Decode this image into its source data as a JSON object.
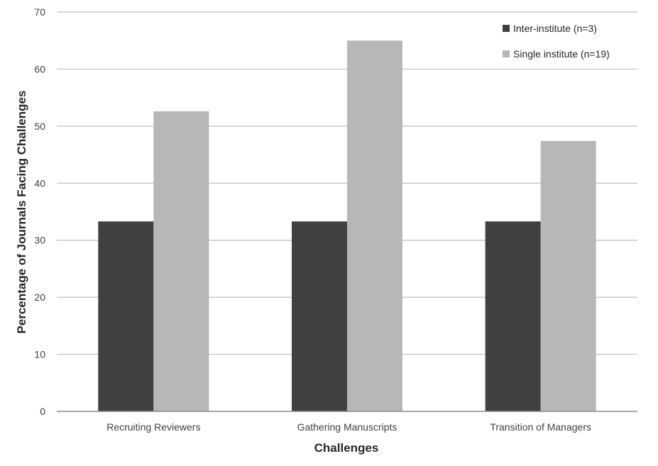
{
  "chart_data": {
    "type": "bar",
    "title": "",
    "xlabel": "Challenges",
    "ylabel": "Percentage of Journals Facing Challenges",
    "categories": [
      "Recruiting Reviewers",
      "Gathering Manuscripts",
      "Transition of Managers"
    ],
    "ylim": [
      0,
      70
    ],
    "yticks": [
      0,
      10,
      20,
      30,
      40,
      50,
      60,
      70
    ],
    "grid": true,
    "legend_position": "top-right",
    "series": [
      {
        "name": "Inter-institute (n=3)",
        "color": "#404040",
        "values": [
          33.3,
          33.3,
          33.3
        ]
      },
      {
        "name": "Single institute (n=19)",
        "color": "#b7b7b7",
        "values": [
          52.6,
          65.0,
          47.4
        ]
      }
    ]
  }
}
